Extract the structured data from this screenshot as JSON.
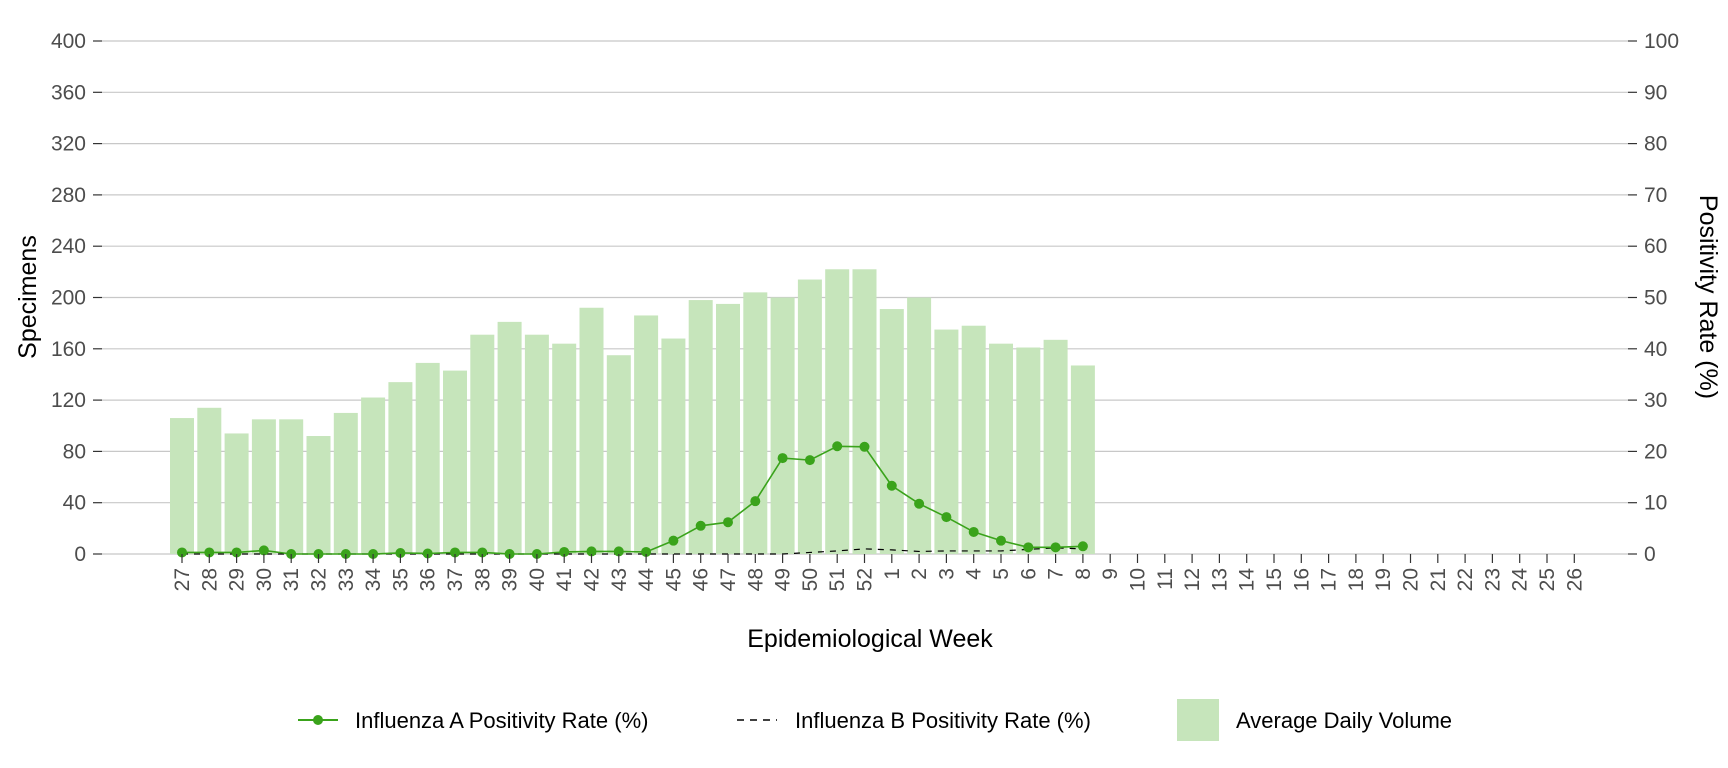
{
  "chart_data": {
    "type": "bar",
    "title": "",
    "xlabel": "Epidemiological Week",
    "ylabel_left": "Specimens",
    "ylabel_right": "Positivity Rate (%)",
    "ylim_left": [
      0,
      400
    ],
    "ylim_right": [
      0,
      100
    ],
    "yticks_left": [
      0,
      40,
      80,
      120,
      160,
      200,
      240,
      280,
      320,
      360,
      400
    ],
    "yticks_right": [
      0,
      10,
      20,
      30,
      40,
      50,
      60,
      70,
      80,
      90,
      100
    ],
    "grid": "horizontal",
    "legend_position": "bottom",
    "categories": [
      "27",
      "28",
      "29",
      "30",
      "31",
      "32",
      "33",
      "34",
      "35",
      "36",
      "37",
      "38",
      "39",
      "40",
      "41",
      "42",
      "43",
      "44",
      "45",
      "46",
      "47",
      "48",
      "49",
      "50",
      "51",
      "52",
      "1",
      "2",
      "3",
      "4",
      "5",
      "6",
      "7",
      "8",
      "9",
      "10",
      "11",
      "12",
      "13",
      "14",
      "15",
      "16",
      "17",
      "18",
      "19",
      "20",
      "21",
      "22",
      "23",
      "24",
      "25",
      "26"
    ],
    "series": [
      {
        "name": "Average Daily Volume",
        "kind": "bar",
        "axis": "left",
        "color": "#c6e5bb",
        "values": [
          106,
          114,
          94,
          105,
          105,
          92,
          110,
          122,
          134,
          149,
          143,
          171,
          181,
          171,
          164,
          192,
          155,
          186,
          168,
          198,
          195,
          204,
          200,
          214,
          222,
          222,
          191,
          200,
          175,
          178,
          164,
          161,
          167,
          147,
          null,
          null,
          null,
          null,
          null,
          null,
          null,
          null,
          null,
          null,
          null,
          null,
          null,
          null,
          null,
          null,
          null,
          null
        ]
      },
      {
        "name": "Influenza A Positivity Rate (%)",
        "kind": "line-with-markers",
        "axis": "right",
        "color": "#3aa31b",
        "values": [
          0.3,
          0.3,
          0.3,
          0.7,
          0.0,
          0.0,
          0.0,
          0.0,
          0.2,
          0.1,
          0.3,
          0.3,
          0.0,
          0.0,
          0.4,
          0.5,
          0.5,
          0.4,
          2.6,
          5.5,
          6.2,
          10.3,
          18.7,
          18.3,
          21.0,
          20.9,
          13.3,
          9.8,
          7.2,
          4.3,
          2.6,
          1.3,
          1.3,
          1.5,
          null,
          null,
          null,
          null,
          null,
          null,
          null,
          null,
          null,
          null,
          null,
          null,
          null,
          null,
          null,
          null,
          null,
          null
        ]
      },
      {
        "name": "Influenza B Positivity Rate (%)",
        "kind": "dashed-line",
        "axis": "right",
        "color": "#000000",
        "values": [
          0.0,
          0.0,
          0.0,
          0.0,
          0.0,
          0.0,
          0.0,
          0.0,
          0.0,
          0.0,
          0.0,
          0.0,
          0.0,
          0.0,
          0.0,
          0.0,
          0.0,
          0.0,
          0.0,
          0.0,
          0.0,
          0.0,
          0.0,
          0.3,
          0.6,
          1.0,
          0.8,
          0.5,
          0.6,
          0.6,
          0.6,
          0.9,
          1.2,
          1.0,
          null,
          null,
          null,
          null,
          null,
          null,
          null,
          null,
          null,
          null,
          null,
          null,
          null,
          null,
          null,
          null,
          null,
          null
        ]
      }
    ],
    "colors": {
      "grid": "#c8c8c8",
      "axis_tick": "#333333",
      "bar": "#c6e5bb",
      "flu_a": "#3aa31b",
      "flu_b": "#000000"
    }
  }
}
